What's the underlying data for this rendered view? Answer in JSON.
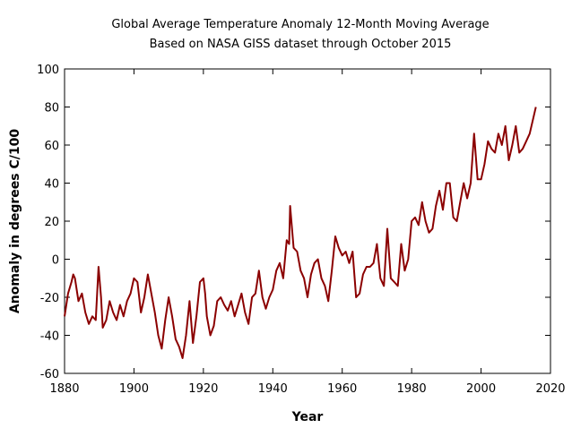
{
  "chart_data": {
    "type": "line",
    "title": "Global Average Temperature Anomaly 12-Month Moving Average",
    "subtitle": "Based on NASA GISS dataset through October 2015",
    "xlabel": "Year",
    "ylabel": "Anomaly in degrees C/100",
    "xlim": [
      1880,
      2020
    ],
    "ylim": [
      -60,
      100
    ],
    "xticks": [
      1880,
      1900,
      1920,
      1940,
      1960,
      1980,
      2000,
      2020
    ],
    "yticks": [
      -60,
      -40,
      -20,
      0,
      20,
      40,
      60,
      80,
      100
    ],
    "grid": false,
    "line_color": "#8b0000",
    "series": [
      {
        "x": [
          1880,
          1881,
          1882,
          1882.5,
          1883,
          1884,
          1885,
          1886,
          1887,
          1888,
          1889,
          1889.8,
          1890.5,
          1891,
          1892,
          1893,
          1894,
          1895,
          1896,
          1897,
          1898,
          1899,
          1900,
          1901,
          1902,
          1903,
          1904,
          1905,
          1906,
          1907,
          1908,
          1909,
          1910,
          1911,
          1912,
          1913,
          1914,
          1915,
          1916,
          1917,
          1918,
          1919,
          1920,
          1920.5,
          1921,
          1922,
          1923,
          1924,
          1925,
          1926,
          1927,
          1928,
          1929,
          1930,
          1931,
          1932,
          1933,
          1934,
          1935,
          1936,
          1937,
          1938,
          1939,
          1940,
          1941,
          1942,
          1943,
          1944,
          1944.7,
          1945,
          1946,
          1947,
          1948,
          1949,
          1950,
          1951,
          1952,
          1953,
          1954,
          1955,
          1956,
          1957,
          1958,
          1959,
          1960,
          1961,
          1962,
          1963,
          1964,
          1965,
          1966,
          1967,
          1968,
          1969,
          1970,
          1971,
          1972,
          1973,
          1974,
          1975,
          1976,
          1977,
          1978,
          1979,
          1980,
          1981,
          1982,
          1983,
          1984,
          1985,
          1986,
          1987,
          1988,
          1989,
          1990,
          1991,
          1992,
          1993,
          1994,
          1995,
          1996,
          1997,
          1998,
          1999,
          2000,
          2001,
          2002,
          2003,
          2004,
          2005,
          2006,
          2007,
          2008,
          2009,
          2010,
          2011,
          2012,
          2013,
          2014,
          2015.8
        ],
        "y": [
          -30,
          -18,
          -12,
          -8,
          -10,
          -22,
          -18,
          -28,
          -34,
          -30,
          -32,
          -4,
          -20,
          -36,
          -32,
          -22,
          -28,
          -32,
          -24,
          -30,
          -22,
          -18,
          -10,
          -12,
          -28,
          -20,
          -8,
          -18,
          -28,
          -40,
          -47,
          -32,
          -20,
          -30,
          -42,
          -46,
          -52,
          -40,
          -22,
          -44,
          -30,
          -12,
          -10,
          -18,
          -30,
          -40,
          -35,
          -22,
          -20,
          -24,
          -27,
          -22,
          -30,
          -24,
          -18,
          -28,
          -34,
          -20,
          -18,
          -6,
          -20,
          -26,
          -20,
          -16,
          -6,
          -2,
          -10,
          10,
          8,
          28,
          6,
          4,
          -6,
          -10,
          -20,
          -8,
          -2,
          0,
          -10,
          -14,
          -22,
          -6,
          12,
          6,
          2,
          4,
          -2,
          4,
          -20,
          -18,
          -8,
          -4,
          -4,
          -2,
          8,
          -10,
          -14,
          16,
          -10,
          -12,
          -14,
          8,
          -6,
          0,
          20,
          22,
          18,
          30,
          20,
          14,
          16,
          28,
          36,
          26,
          40,
          40,
          22,
          20,
          30,
          40,
          32,
          40,
          66,
          42,
          42,
          50,
          62,
          58,
          56,
          66,
          60,
          70,
          52,
          60,
          70,
          56,
          58,
          62,
          66,
          80
        ]
      }
    ]
  }
}
